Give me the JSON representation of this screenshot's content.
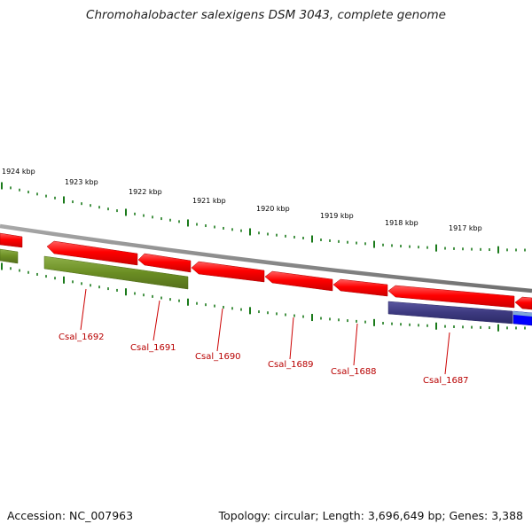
{
  "title": "Chromohalobacter salexigens DSM 3043, complete genome",
  "footer": {
    "accession": "Accession: NC_007963",
    "summary": "Topology: circular; Length: 3,696,649 bp; Genes: 3,388"
  },
  "scale_ticks": [
    {
      "label": "1924 kbp",
      "kbp": 1924
    },
    {
      "label": "1923 kbp",
      "kbp": 1923
    },
    {
      "label": "1922 kbp",
      "kbp": 1922
    },
    {
      "label": "1921 kbp",
      "kbp": 1921
    },
    {
      "label": "1920 kbp",
      "kbp": 1920
    },
    {
      "label": "1919 kbp",
      "kbp": 1919
    },
    {
      "label": "1918 kbp",
      "kbp": 1918
    },
    {
      "label": "1917 kbp",
      "kbp": 1917
    }
  ],
  "gene_labels": [
    {
      "name": "Csal_1692"
    },
    {
      "name": "Csal_1691"
    },
    {
      "name": "Csal_1690"
    },
    {
      "name": "Csal_1689"
    },
    {
      "name": "Csal_1688"
    },
    {
      "name": "Csal_1687"
    }
  ],
  "colors": {
    "forward_track_genes": "#ff0000",
    "reverse_track_olive": "#6b8e23",
    "reverse_track_navy": "#3d3a80",
    "reverse_track_blue": "#0000ff",
    "backbone": "#808080",
    "tick_marks": "#1a7a1a",
    "gene_label_text": "#b80000"
  }
}
